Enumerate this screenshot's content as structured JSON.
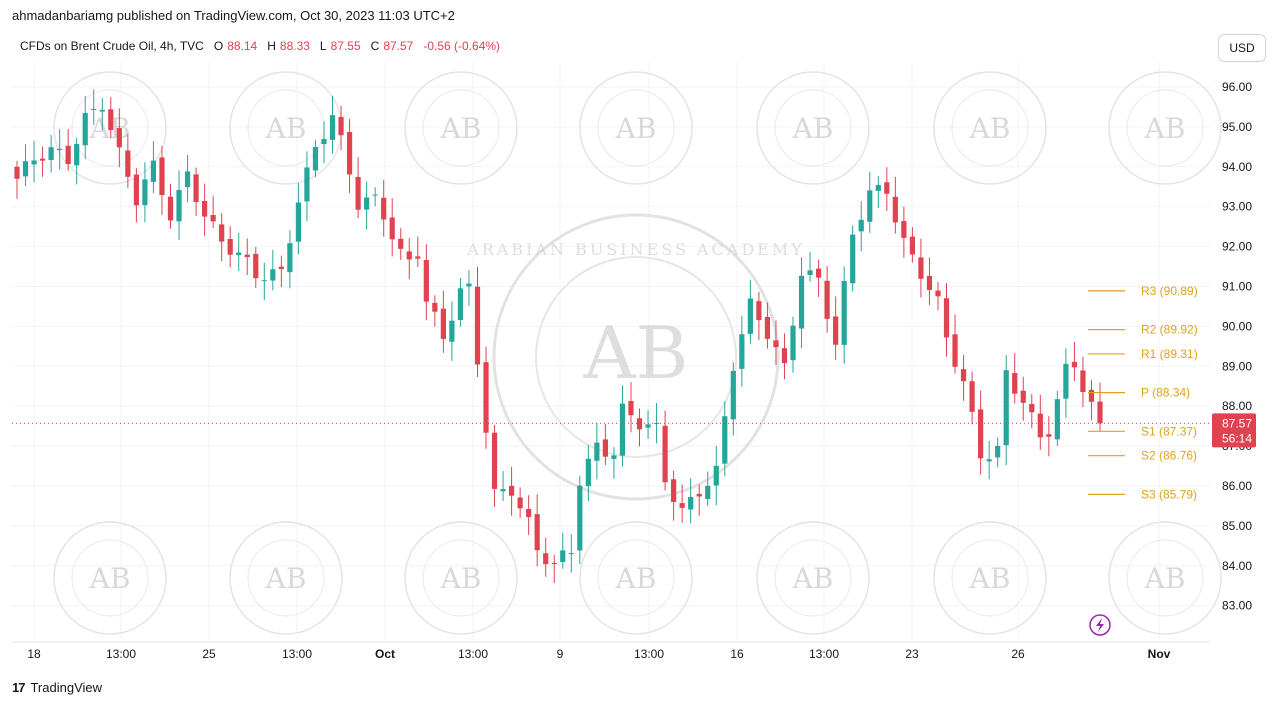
{
  "header": {
    "publisher_line": "ahmadanbariamg published on TradingView.com, Oct 30, 2023 11:03 UTC+2"
  },
  "legend": {
    "symbol": "CFDs on Brent Crude Oil, 4h, TVC",
    "o_label": "O",
    "o_value": "88.14",
    "h_label": "H",
    "h_value": "88.33",
    "l_label": "L",
    "l_value": "87.55",
    "c_label": "C",
    "c_value": "87.57",
    "change": "-0.56 (-0.64%)"
  },
  "currency_button": "USD",
  "footer": {
    "brand": "TradingView",
    "logo": "17"
  },
  "watermark": {
    "text": "AB",
    "ring_text": "ARABIAN BUSINESS ACADEMY"
  },
  "colors": {
    "up": "#26a69a",
    "down": "#e0424f",
    "pivot": "#e0a21a",
    "grid": "#f0f3fa",
    "last_price_line": "#e0424f"
  },
  "chart_data": {
    "type": "candlestick",
    "ylim": [
      82.3,
      96.6
    ],
    "y_ticks": [
      "96.00",
      "95.00",
      "94.00",
      "93.00",
      "92.00",
      "91.00",
      "90.00",
      "89.00",
      "88.00",
      "87.00",
      "86.00",
      "85.00",
      "84.00",
      "83.00"
    ],
    "x_ticks": [
      "18",
      "13:00",
      "25",
      "13:00",
      "Oct",
      "13:00",
      "9",
      "13:00",
      "16",
      "13:00",
      "23",
      "26",
      "Nov"
    ],
    "last_price": {
      "value": 87.57,
      "label": "87.57",
      "countdown": "56:14"
    },
    "pivots": [
      {
        "label": "R3 (90.89)",
        "value": 90.89
      },
      {
        "label": "R2 (89.92)",
        "value": 89.92
      },
      {
        "label": "R1 (89.31)",
        "value": 89.31
      },
      {
        "label": "P (88.34)",
        "value": 88.34
      },
      {
        "label": "S1 (87.37)",
        "value": 87.37
      },
      {
        "label": "S2 (86.76)",
        "value": 86.76
      },
      {
        "label": "S3 (85.79)",
        "value": 85.79
      }
    ],
    "close_path": [
      [
        0,
        93.7
      ],
      [
        2,
        94.1
      ],
      [
        4,
        94.3
      ],
      [
        6,
        94.2
      ],
      [
        8,
        95.3
      ],
      [
        10,
        95.7
      ],
      [
        12,
        94.3
      ],
      [
        14,
        93.1
      ],
      [
        16,
        93.9
      ],
      [
        18,
        92.8
      ],
      [
        20,
        93.9
      ],
      [
        22,
        92.9
      ],
      [
        24,
        92.1
      ],
      [
        26,
        91.7
      ],
      [
        28,
        91.2
      ],
      [
        31,
        91.4
      ],
      [
        33,
        93.3
      ],
      [
        35,
        94.5
      ],
      [
        37,
        95.2
      ],
      [
        38,
        94.5
      ],
      [
        40,
        93.0
      ],
      [
        42,
        93.2
      ],
      [
        43,
        92.9
      ],
      [
        45,
        91.9
      ],
      [
        46,
        91.7
      ],
      [
        47,
        91.9
      ],
      [
        48,
        90.6
      ],
      [
        50,
        89.6
      ],
      [
        52,
        90.8
      ],
      [
        53,
        90.9
      ],
      [
        54,
        89.2
      ],
      [
        56,
        85.9
      ],
      [
        58,
        86.0
      ],
      [
        60,
        85.0
      ],
      [
        61,
        84.3
      ],
      [
        63,
        83.9
      ],
      [
        65,
        84.4
      ],
      [
        66,
        86.2
      ],
      [
        68,
        87.1
      ],
      [
        70,
        86.9
      ],
      [
        71,
        87.9
      ],
      [
        73,
        87.5
      ],
      [
        75,
        87.3
      ],
      [
        76,
        86.1
      ],
      [
        78,
        85.4
      ],
      [
        80,
        86.0
      ],
      [
        82,
        86.4
      ],
      [
        84,
        89.0
      ],
      [
        86,
        90.4
      ],
      [
        88,
        89.8
      ],
      [
        90,
        89.0
      ],
      [
        92,
        91.5
      ],
      [
        94,
        91.2
      ],
      [
        96,
        89.5
      ],
      [
        98,
        92.2
      ],
      [
        100,
        93.3
      ],
      [
        102,
        93.5
      ],
      [
        104,
        92.2
      ],
      [
        106,
        91.4
      ],
      [
        108,
        90.5
      ],
      [
        109,
        89.6
      ],
      [
        111,
        88.5
      ],
      [
        113,
        86.8
      ],
      [
        115,
        87.0
      ],
      [
        116,
        88.9
      ],
      [
        118,
        88.2
      ],
      [
        120,
        87.1
      ],
      [
        121,
        87.3
      ],
      [
        123,
        88.8
      ],
      [
        124,
        89.0
      ],
      [
        126,
        88.1
      ],
      [
        127,
        87.57
      ]
    ]
  }
}
